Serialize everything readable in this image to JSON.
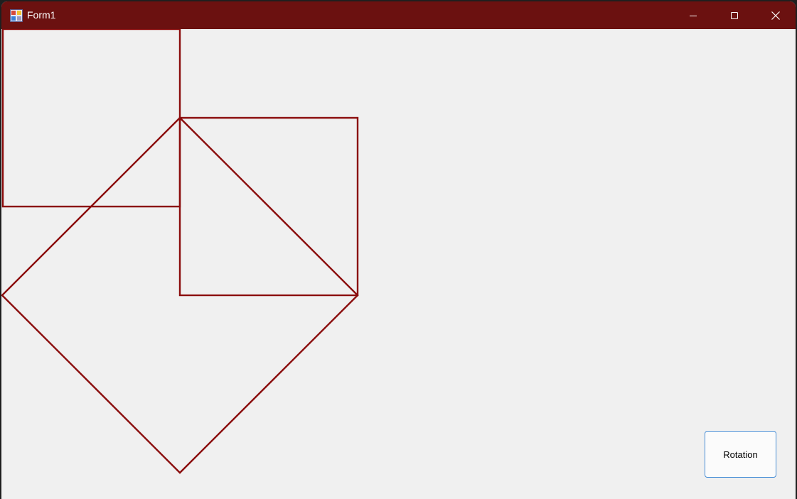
{
  "window": {
    "title": "Form1",
    "titlebar_color": "#6b1110",
    "background_color": "#f0f0f0"
  },
  "caption_buttons": {
    "minimize": "minimize-icon",
    "maximize": "maximize-icon",
    "close": "close-icon"
  },
  "drawing": {
    "stroke_color": "#8b0d0d",
    "shapes": [
      "square",
      "square",
      "rotated-square",
      "triangle"
    ]
  },
  "controls": {
    "rotation_label": "Rotation"
  }
}
